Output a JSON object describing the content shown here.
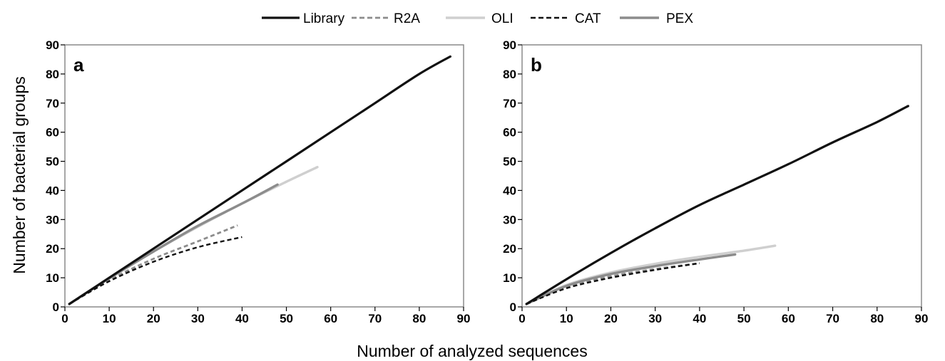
{
  "legend": {
    "items": [
      {
        "label": "Library",
        "color": "#111111",
        "dash": "solid"
      },
      {
        "label": "R2A",
        "color": "#8c8c8c",
        "dash": "dashed"
      },
      {
        "label": "OLI",
        "color": "#cfcfcf",
        "dash": "solid"
      },
      {
        "label": "CAT",
        "color": "#111111",
        "dash": "dashed"
      },
      {
        "label": "PEX",
        "color": "#8c8c8c",
        "dash": "solid"
      }
    ]
  },
  "axes": {
    "ylabel": "Number of bacterial groups",
    "xlabel": "Number of analyzed sequences"
  },
  "chart_data": [
    {
      "type": "line",
      "panel": "a",
      "xlim": [
        0,
        90
      ],
      "ylim": [
        0,
        90
      ],
      "xticks": [
        0,
        10,
        20,
        30,
        40,
        50,
        60,
        70,
        80,
        90
      ],
      "yticks": [
        0,
        10,
        20,
        30,
        40,
        50,
        60,
        70,
        80,
        90
      ],
      "series": [
        {
          "name": "Library",
          "x": [
            1,
            10,
            20,
            30,
            40,
            50,
            60,
            70,
            80,
            87
          ],
          "y": [
            1,
            10,
            20,
            30,
            40,
            50,
            60,
            70,
            80,
            86
          ]
        },
        {
          "name": "OLI",
          "x": [
            1,
            10,
            20,
            30,
            40,
            50,
            57
          ],
          "y": [
            1,
            9.8,
            19,
            27.5,
            35.5,
            43,
            48
          ]
        },
        {
          "name": "PEX",
          "x": [
            1,
            10,
            20,
            30,
            40,
            48
          ],
          "y": [
            1,
            9.8,
            19,
            27.8,
            35.5,
            42
          ]
        },
        {
          "name": "R2A",
          "x": [
            1,
            10,
            20,
            30,
            39
          ],
          "y": [
            1,
            9.2,
            16.5,
            22.5,
            28
          ]
        },
        {
          "name": "CAT",
          "x": [
            1,
            10,
            20,
            30,
            40
          ],
          "y": [
            1,
            8.8,
            15.5,
            20.5,
            24
          ]
        }
      ]
    },
    {
      "type": "line",
      "panel": "b",
      "xlim": [
        0,
        90
      ],
      "ylim": [
        0,
        90
      ],
      "xticks": [
        0,
        10,
        20,
        30,
        40,
        50,
        60,
        70,
        80,
        90
      ],
      "yticks": [
        0,
        10,
        20,
        30,
        40,
        50,
        60,
        70,
        80,
        90
      ],
      "series": [
        {
          "name": "Library",
          "x": [
            1,
            10,
            20,
            30,
            40,
            50,
            60,
            70,
            80,
            87
          ],
          "y": [
            1,
            9.5,
            18.5,
            27,
            35,
            42,
            49,
            56.5,
            63.5,
            69
          ]
        },
        {
          "name": "OLI",
          "x": [
            1,
            10,
            20,
            30,
            40,
            50,
            57
          ],
          "y": [
            1,
            7.5,
            11.8,
            14.8,
            17.2,
            19.3,
            21
          ]
        },
        {
          "name": "PEX",
          "x": [
            1,
            10,
            20,
            30,
            40,
            48
          ],
          "y": [
            1,
            7.2,
            11.3,
            14,
            16.3,
            18
          ]
        },
        {
          "name": "R2A",
          "x": [
            1,
            10,
            20,
            30,
            40
          ],
          "y": [
            1,
            6.8,
            10.5,
            13,
            15
          ]
        },
        {
          "name": "CAT",
          "x": [
            1,
            10,
            20,
            30,
            40
          ],
          "y": [
            1,
            6.4,
            10,
            12.7,
            15
          ]
        }
      ]
    }
  ]
}
